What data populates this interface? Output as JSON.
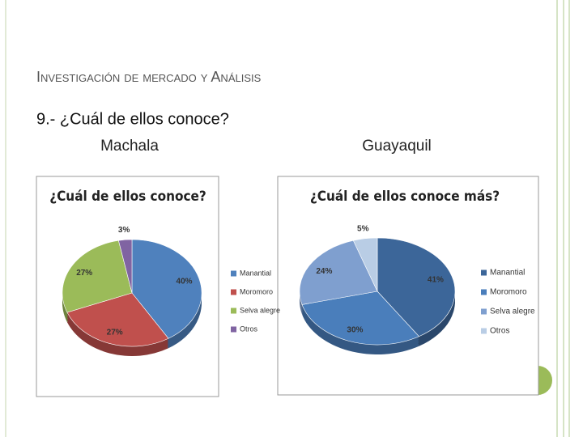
{
  "slide": {
    "title": "Investigación  de mercado y Análisis",
    "question": "9.- ¿Cuál de ellos conoce?"
  },
  "chart_data": [
    {
      "type": "pie",
      "subtitle": "Machala",
      "title": "¿Cuál de ellos conoce?",
      "categories": [
        "Manantial",
        "Moromoro",
        "Selva alegre",
        "Otros"
      ],
      "values": [
        40,
        27,
        27,
        3
      ],
      "value_labels": [
        "40%",
        "27%",
        "27%",
        "3%"
      ],
      "colors": [
        "#4f81bd",
        "#c0504d",
        "#9bbb59",
        "#8064a2"
      ],
      "legend": "right"
    },
    {
      "type": "pie",
      "subtitle": "Guayaquil",
      "title": "¿Cuál de ellos conoce más?",
      "categories": [
        "Manantial",
        "Moromoro",
        "Selva alegre",
        "Otros"
      ],
      "values": [
        41,
        30,
        24,
        5
      ],
      "value_labels": [
        "41%",
        "30%",
        "24%",
        "5%"
      ],
      "colors": [
        "#3c6699",
        "#4a7ebb",
        "#7f9fcf",
        "#b9cde5"
      ],
      "legend": "right"
    }
  ]
}
